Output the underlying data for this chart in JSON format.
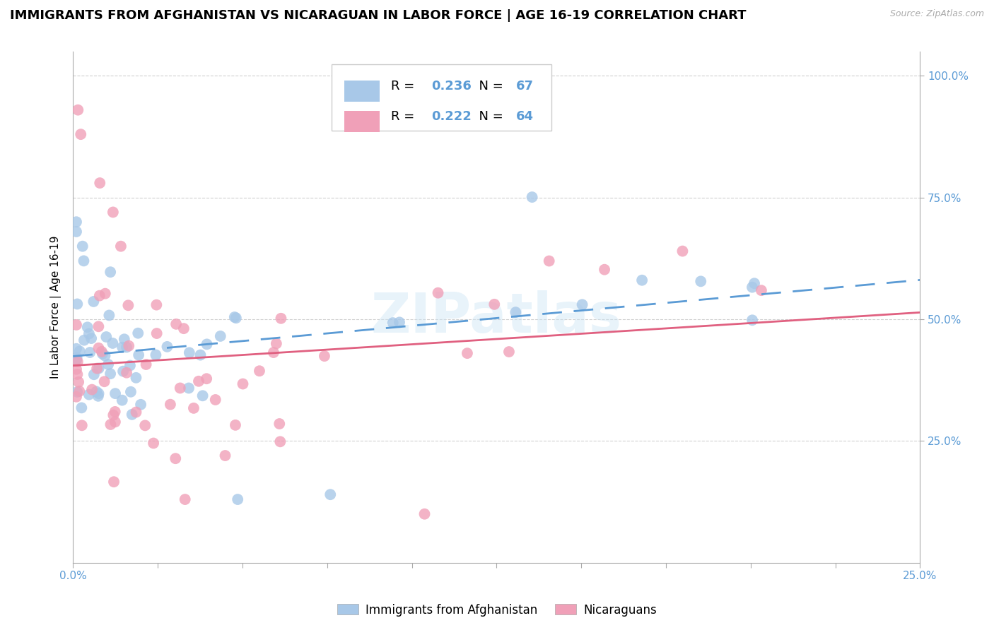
{
  "title": "IMMIGRANTS FROM AFGHANISTAN VS NICARAGUAN IN LABOR FORCE | AGE 16-19 CORRELATION CHART",
  "source": "Source: ZipAtlas.com",
  "ylabel": "In Labor Force | Age 16-19",
  "xlim": [
    0.0,
    0.25
  ],
  "ylim": [
    0.0,
    1.05
  ],
  "yticks": [
    0.25,
    0.5,
    0.75,
    1.0
  ],
  "ytick_labels": [
    "25.0%",
    "50.0%",
    "75.0%",
    "100.0%"
  ],
  "xticks": [
    0.0,
    0.025,
    0.05,
    0.075,
    0.1,
    0.125,
    0.15,
    0.175,
    0.2,
    0.225,
    0.25
  ],
  "xtick_labels": [
    "0.0%",
    "",
    "",
    "",
    "",
    "",
    "",
    "",
    "",
    "",
    "25.0%"
  ],
  "afghanistan_color": "#a8c8e8",
  "nicaragua_color": "#f0a0b8",
  "afghanistan_R": 0.236,
  "afghanistan_N": 67,
  "nicaragua_R": 0.222,
  "nicaragua_N": 64,
  "trend_blue_color": "#5b9bd5",
  "trend_pink_color": "#e06080",
  "background_color": "#ffffff",
  "grid_color": "#d0d0d0",
  "watermark": "ZIPatlas",
  "title_fontsize": 13,
  "axis_label_fontsize": 11,
  "tick_fontsize": 11,
  "tick_color": "#5b9bd5"
}
